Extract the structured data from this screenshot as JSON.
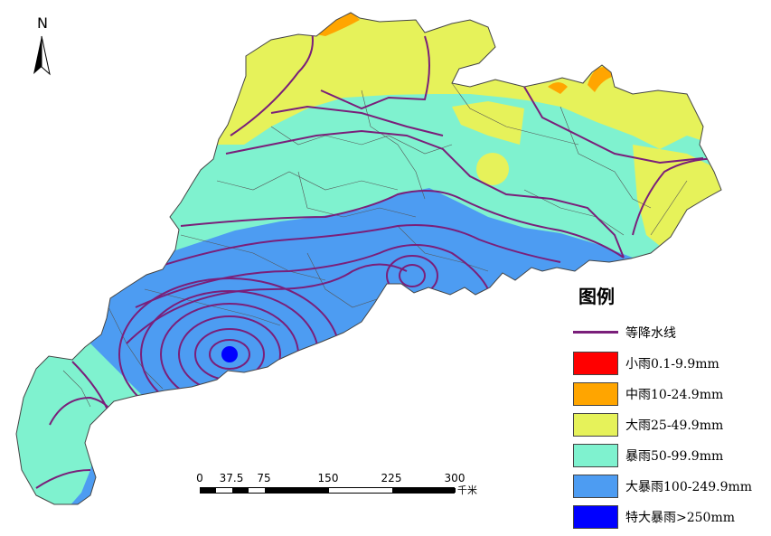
{
  "north_arrow": {
    "label": "N"
  },
  "scale_bar": {
    "ticks": [
      "0",
      "37.5",
      "75",
      "150",
      "225",
      "300"
    ],
    "unit": "千米"
  },
  "legend": {
    "title": "图例",
    "items": [
      {
        "label": "等降水线",
        "kind": "line",
        "color": "#7a1f7a"
      },
      {
        "label": "小雨0.1-9.9mm",
        "kind": "fill",
        "color": "#ff0000"
      },
      {
        "label": "中雨10-24.9mm",
        "kind": "fill",
        "color": "#ffa500"
      },
      {
        "label": "大雨25-49.9mm",
        "kind": "fill",
        "color": "#e6f25a"
      },
      {
        "label": "暴雨50-99.9mm",
        "kind": "fill",
        "color": "#7ff2cf"
      },
      {
        "label": "大暴雨100-249.9mm",
        "kind": "fill",
        "color": "#4d9cf2"
      },
      {
        "label": "特大暴雨>250mm",
        "kind": "fill",
        "color": "#0000ff"
      }
    ]
  },
  "colors": {
    "light_rain": "#ff0000",
    "moderate_rain": "#ffa500",
    "heavy_rain": "#e6f25a",
    "rainstorm": "#7ff2cf",
    "heavy_rainstorm": "#4d9cf2",
    "extreme_rainstorm": "#0000ff",
    "isohyet": "#7a1f7a",
    "boundary": "#444444"
  }
}
